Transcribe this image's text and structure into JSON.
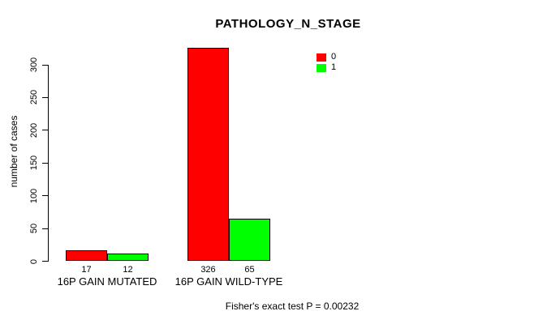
{
  "chart_data": {
    "type": "bar",
    "title": "PATHOLOGY_N_STAGE",
    "ylabel": "number of cases",
    "xlabel": "",
    "categories": [
      "16P GAIN MUTATED",
      "16P GAIN WILD-TYPE"
    ],
    "series": [
      {
        "name": "0",
        "color": "#ff0000",
        "values": [
          17,
          326
        ]
      },
      {
        "name": "1",
        "color": "#00ff00",
        "values": [
          12,
          65
        ]
      }
    ],
    "y_ticks": [
      0,
      50,
      100,
      150,
      200,
      250,
      300
    ],
    "ylim": [
      0,
      326
    ],
    "grid": false,
    "legend_position": "top-right",
    "bar_border_color": "#000000",
    "axis_color": "#000000",
    "footnote": "Fisher's exact test P = 0.00232"
  }
}
